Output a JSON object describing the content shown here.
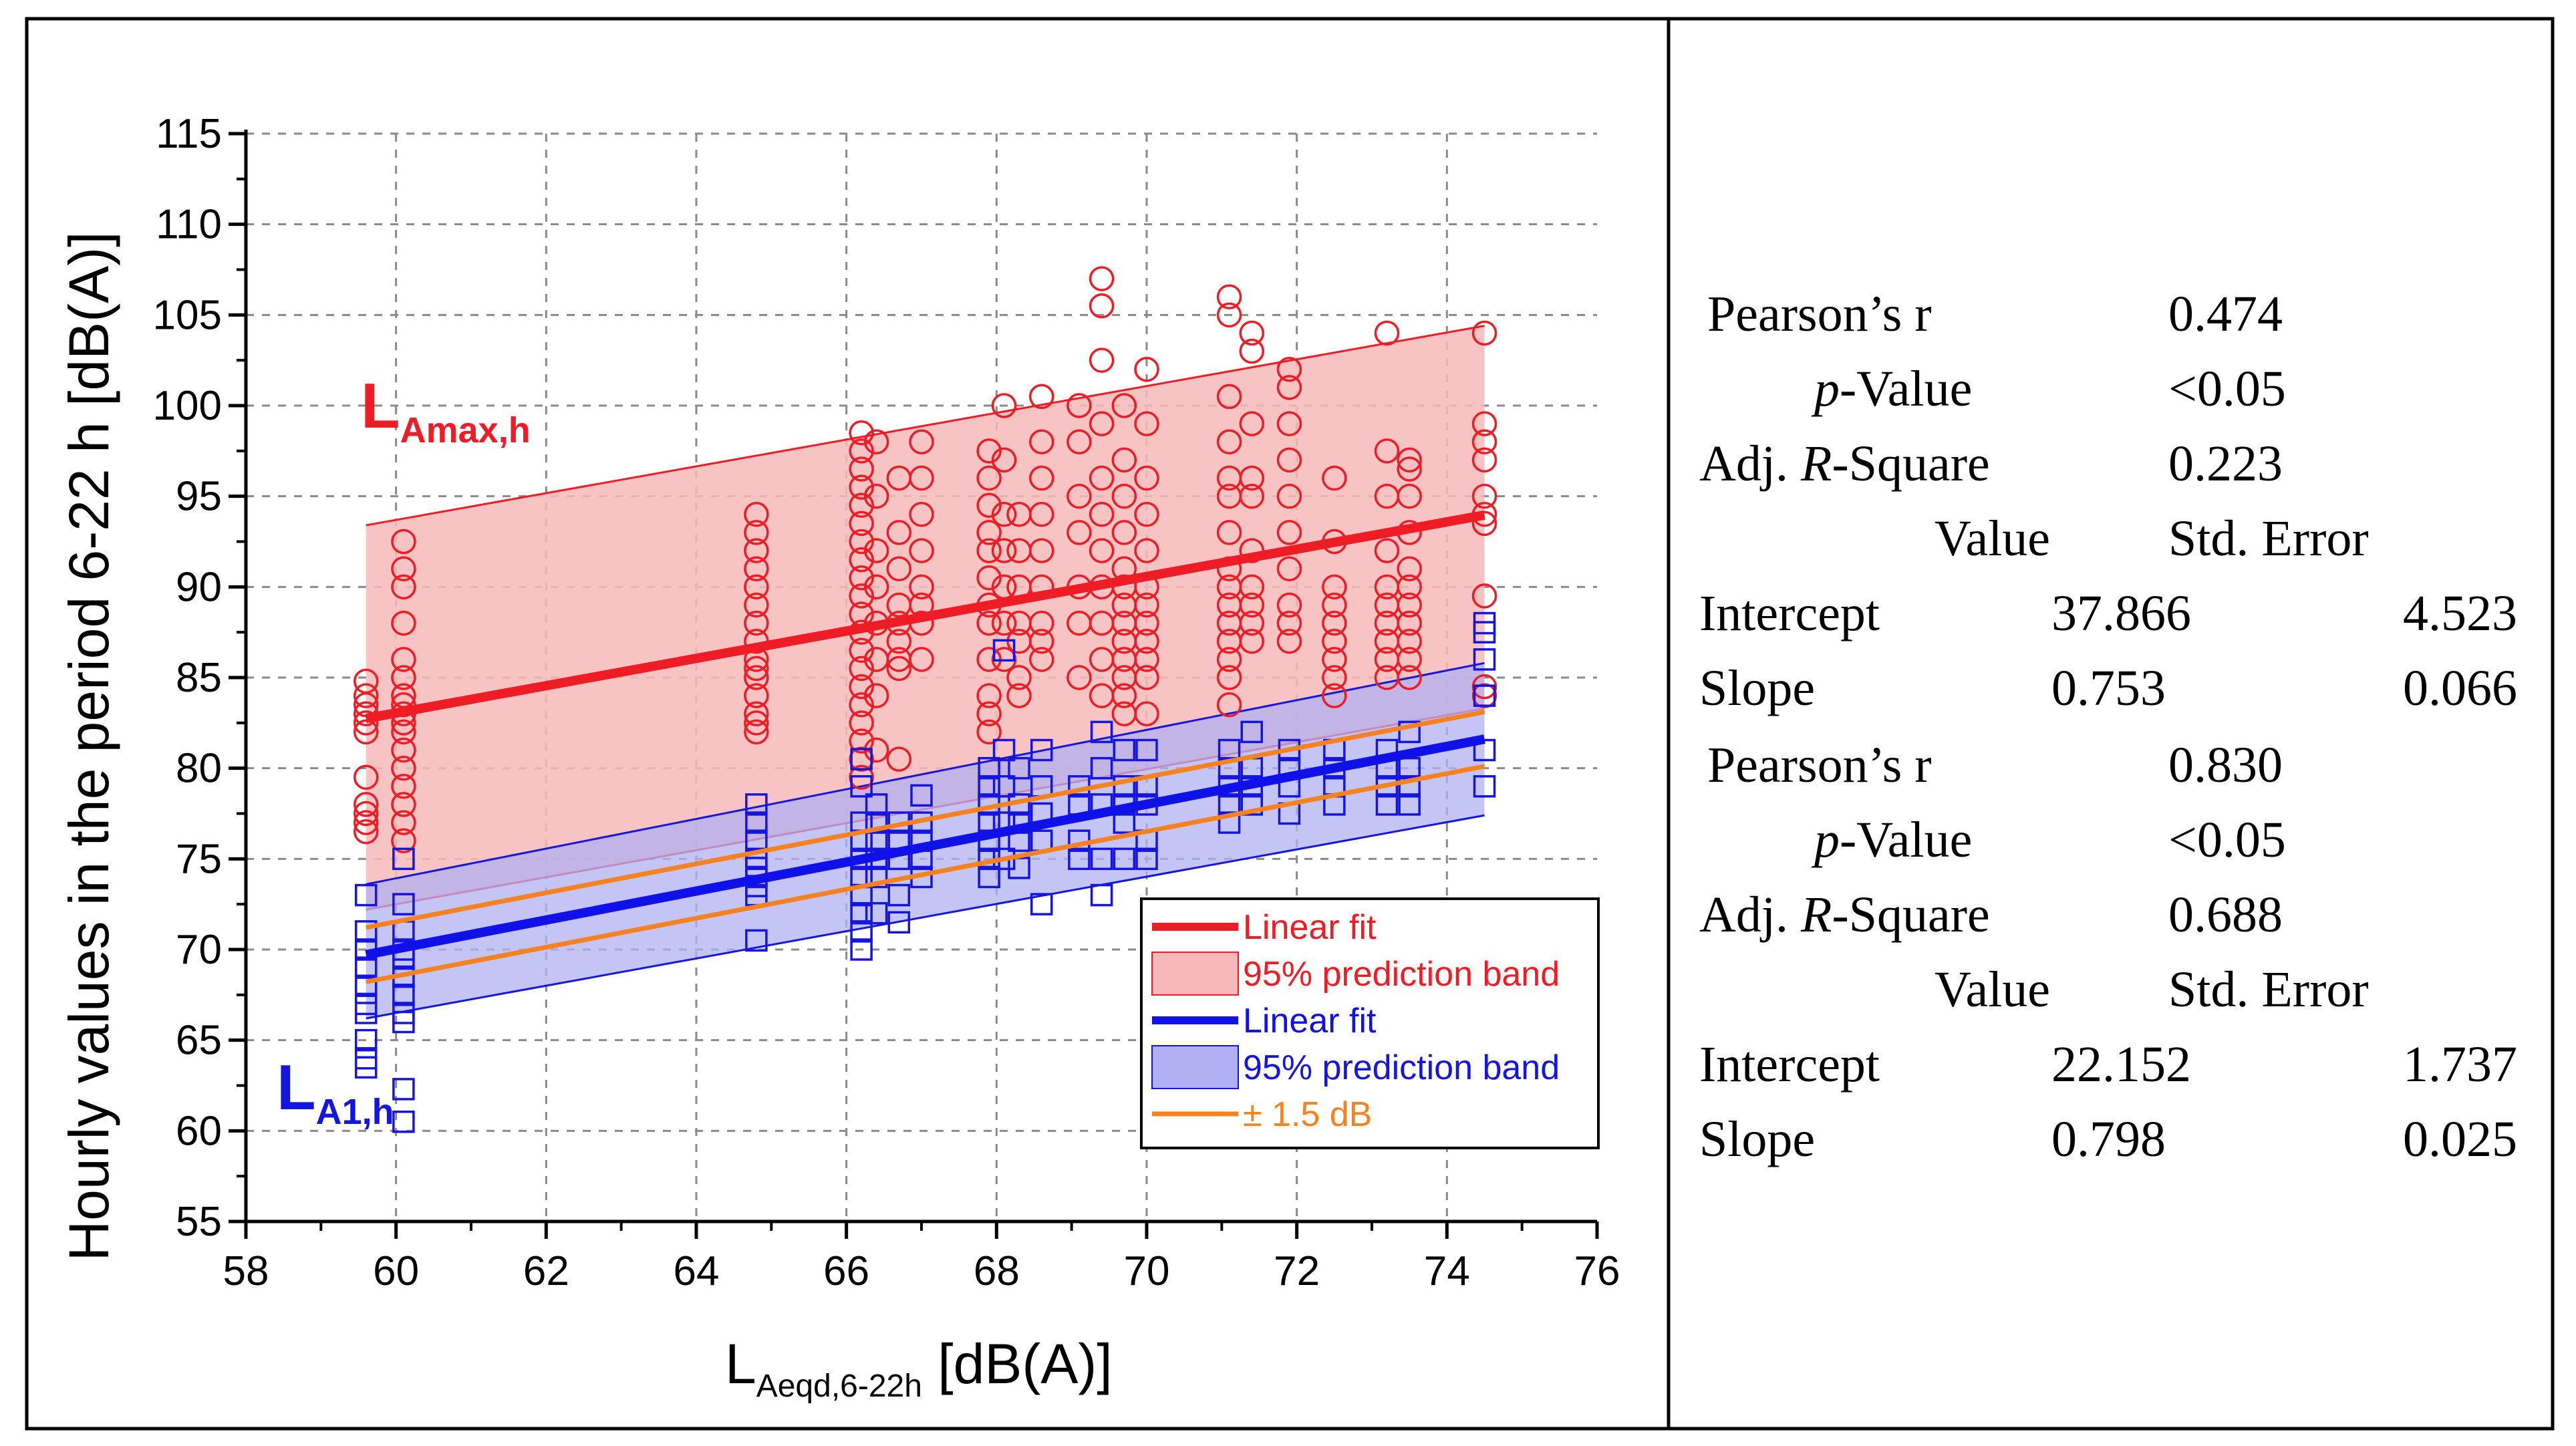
{
  "chart_data": {
    "type": "scatter",
    "xlabel_main": "L",
    "xlabel_sub": "Aeqd,6-22h",
    "xlabel_unit": " [dB(A)]",
    "ylabel": "Hourly values in the period 6-22 h [dB(A)]",
    "xlim": [
      58,
      76
    ],
    "ylim": [
      55,
      115
    ],
    "xticks": [
      58,
      60,
      62,
      64,
      66,
      68,
      70,
      72,
      74,
      76
    ],
    "yticks": [
      55,
      60,
      65,
      70,
      75,
      80,
      85,
      90,
      95,
      100,
      105,
      110,
      115
    ],
    "grid": true,
    "series_labels": [
      {
        "main": "L",
        "sub": "Amax,h",
        "color": "#ee1c25"
      },
      {
        "main": "L",
        "sub": "A1,h",
        "color": "#1515e0"
      }
    ],
    "fits": [
      {
        "name": "Linear fit (LAmax,h)",
        "intercept": 37.866,
        "slope": 0.753,
        "color": "#ee1c25",
        "x_range": [
          59.6,
          74.5
        ]
      },
      {
        "name": "Linear fit (LA1,h)",
        "intercept": 22.152,
        "slope": 0.798,
        "color": "#1010e8",
        "x_range": [
          59.6,
          74.5
        ]
      }
    ],
    "prediction_bands": [
      {
        "name": "95% prediction band (LAmax,h)",
        "lower_start": 72.2,
        "lower_end": 83.3,
        "upper_start": 93.4,
        "upper_end": 104.4,
        "fill": "#f6b8b8",
        "line": "#ee1c25"
      },
      {
        "name": "95% prediction band (LA1,h)",
        "lower_start": 66.2,
        "lower_end": 77.4,
        "upper_start": 73.6,
        "upper_end": 85.8,
        "fill": "#b0b0f2",
        "line": "#1515e0"
      }
    ],
    "offset_lines": {
      "name": "± 1.5 dB",
      "offset": 1.5,
      "color": "#f5821f"
    },
    "lamax_points": {
      "x": [
        59.6,
        59.6,
        59.6,
        59.6,
        59.6,
        59.6,
        59.6,
        59.6,
        59.6,
        59.6,
        59.6,
        60.1,
        60.1,
        60.1,
        60.1,
        60.1,
        60.1,
        60.1,
        60.1,
        60.1,
        60.1,
        60.1,
        60.1,
        60.1,
        60.1,
        60.1,
        60.1,
        60.1,
        64.8,
        64.8,
        64.8,
        64.8,
        64.8,
        64.8,
        64.8,
        64.8,
        64.8,
        64.8,
        64.8,
        64.8,
        64.8,
        64.8,
        64.8,
        66.2,
        66.2,
        66.2,
        66.2,
        66.2,
        66.2,
        66.2,
        66.2,
        66.2,
        66.2,
        66.2,
        66.2,
        66.2,
        66.2,
        66.2,
        66.2,
        66.2,
        66.2,
        66.2,
        66.2,
        66.4,
        66.4,
        66.4,
        66.4,
        66.4,
        66.4,
        66.4,
        66.4,
        66.7,
        66.7,
        66.7,
        66.7,
        66.7,
        66.7,
        66.7,
        66.7,
        66.7,
        67.0,
        67.0,
        67.0,
        67.0,
        67.0,
        67.0,
        67.0,
        67.0,
        67.9,
        67.9,
        67.9,
        67.9,
        67.9,
        67.9,
        67.9,
        67.9,
        67.9,
        67.9,
        67.9,
        67.9,
        68.1,
        68.1,
        68.1,
        68.1,
        68.1,
        68.1,
        68.1,
        68.3,
        68.3,
        68.3,
        68.3,
        68.3,
        68.3,
        68.3,
        68.6,
        68.6,
        68.6,
        68.6,
        68.6,
        68.6,
        68.6,
        68.6,
        68.6,
        69.1,
        69.1,
        69.1,
        69.1,
        69.1,
        69.1,
        69.1,
        69.4,
        69.4,
        69.4,
        69.4,
        69.4,
        69.4,
        69.4,
        69.4,
        69.4,
        69.4,
        69.4,
        69.7,
        69.7,
        69.7,
        69.7,
        69.7,
        69.7,
        69.7,
        69.7,
        69.7,
        69.7,
        69.7,
        69.7,
        69.7,
        70.0,
        70.0,
        70.0,
        70.0,
        70.0,
        70.0,
        70.0,
        70.0,
        70.0,
        70.0,
        70.0,
        70.0,
        71.1,
        71.1,
        71.1,
        71.1,
        71.1,
        71.1,
        71.1,
        71.1,
        71.1,
        71.1,
        71.1,
        71.1,
        71.1,
        71.1,
        71.1,
        71.4,
        71.4,
        71.4,
        71.4,
        71.4,
        71.4,
        71.4,
        71.4,
        71.4,
        71.4,
        71.9,
        71.9,
        71.9,
        71.9,
        71.9,
        71.9,
        71.9,
        71.9,
        71.9,
        71.9,
        72.5,
        72.5,
        72.5,
        72.5,
        72.5,
        72.5,
        72.5,
        72.5,
        72.5,
        73.2,
        73.2,
        73.2,
        73.2,
        73.2,
        73.2,
        73.2,
        73.2,
        73.2,
        73.2,
        73.5,
        73.5,
        73.5,
        73.5,
        73.5,
        73.5,
        73.5,
        73.5,
        73.5,
        73.5,
        73.5,
        74.5,
        74.5,
        74.5,
        74.5,
        74.5,
        74.5,
        74.5,
        74.5,
        74.5,
        74.5
      ],
      "y": [
        84.8,
        84.0,
        83.5,
        83.0,
        82.5,
        82.0,
        78.0,
        77.5,
        77.0,
        76.5,
        79.5,
        92.5,
        91.0,
        90.0,
        88.0,
        86.0,
        85.0,
        84.0,
        83.5,
        83.0,
        82.5,
        82.0,
        81.0,
        80.0,
        79.0,
        78.0,
        77.0,
        76.0,
        94.0,
        93.0,
        92.0,
        91.0,
        90.0,
        89.0,
        88.0,
        87.0,
        86.0,
        85.5,
        85.0,
        84.0,
        83.0,
        82.5,
        82.0,
        98.5,
        97.5,
        96.5,
        95.5,
        94.5,
        93.5,
        92.5,
        91.5,
        90.5,
        89.5,
        88.5,
        87.5,
        86.5,
        85.5,
        84.5,
        83.5,
        82.5,
        81.5,
        80.5,
        79.5,
        98.0,
        95.0,
        92.0,
        90.0,
        88.0,
        86.0,
        84.0,
        81.0,
        96.0,
        93.0,
        91.0,
        89.0,
        88.0,
        87.0,
        86.0,
        85.5,
        80.5,
        98.0,
        96.0,
        94.0,
        92.0,
        90.0,
        89.0,
        88.0,
        86.0,
        97.5,
        96.0,
        94.5,
        93.0,
        92.0,
        90.5,
        89.0,
        88.0,
        86.0,
        84.0,
        83.0,
        82.0,
        100.0,
        97.0,
        94.0,
        92.0,
        90.0,
        88.0,
        86.0,
        94.0,
        92.0,
        90.0,
        88.0,
        87.0,
        85.0,
        84.0,
        100.5,
        98.0,
        96.0,
        94.0,
        92.0,
        90.0,
        88.0,
        87.0,
        86.0,
        100.0,
        98.0,
        95.0,
        93.0,
        90.0,
        88.0,
        85.0,
        107.0,
        105.5,
        102.5,
        99.0,
        96.0,
        94.0,
        92.0,
        90.0,
        88.0,
        86.0,
        84.0,
        100.0,
        97.0,
        95.0,
        93.0,
        91.0,
        90.0,
        89.0,
        88.0,
        87.0,
        86.0,
        85.0,
        84.0,
        83.0,
        102.0,
        99.0,
        96.0,
        94.0,
        92.0,
        90.0,
        89.0,
        88.0,
        87.0,
        86.0,
        85.0,
        83.0,
        106.0,
        105.0,
        100.5,
        98.0,
        96.0,
        95.0,
        93.0,
        91.0,
        90.0,
        89.0,
        88.0,
        87.0,
        86.0,
        85.0,
        83.5,
        104.0,
        103.0,
        99.0,
        96.0,
        95.0,
        92.0,
        90.0,
        89.0,
        88.0,
        87.0,
        102.0,
        101.0,
        99.0,
        97.0,
        95.0,
        93.0,
        91.0,
        89.0,
        88.0,
        87.0,
        96.0,
        92.5,
        90.0,
        89.0,
        88.0,
        87.0,
        86.0,
        85.0,
        84.0,
        104.0,
        97.5,
        95.0,
        92.0,
        90.0,
        89.0,
        88.0,
        87.0,
        86.0,
        85.0,
        97.0,
        96.5,
        95.0,
        93.0,
        91.0,
        90.0,
        89.0,
        88.0,
        87.0,
        86.0,
        85.0,
        104.0,
        99.0,
        98.0,
        97.0,
        95.0,
        94.0,
        93.5,
        89.5,
        84.5,
        84.0
      ]
    },
    "la1_points": {
      "x": [
        59.6,
        59.6,
        59.6,
        59.6,
        59.6,
        59.6,
        59.6,
        59.6,
        59.6,
        59.6,
        60.1,
        60.1,
        60.1,
        60.1,
        60.1,
        60.1,
        60.1,
        60.1,
        60.1,
        60.1,
        60.1,
        64.8,
        64.8,
        64.8,
        64.8,
        64.8,
        64.8,
        64.8,
        64.8,
        64.8,
        66.2,
        66.2,
        66.2,
        66.2,
        66.2,
        66.2,
        66.2,
        66.2,
        66.2,
        66.2,
        66.4,
        66.4,
        66.4,
        66.4,
        66.4,
        66.4,
        66.7,
        66.7,
        66.7,
        66.7,
        66.7,
        67.0,
        67.0,
        67.0,
        67.0,
        67.0,
        67.9,
        67.9,
        67.9,
        67.9,
        67.9,
        67.9,
        67.9,
        68.1,
        68.1,
        68.1,
        68.1,
        68.1,
        68.3,
        68.3,
        68.3,
        68.3,
        68.3,
        68.6,
        68.6,
        68.6,
        68.6,
        68.6,
        69.1,
        69.1,
        69.1,
        69.1,
        69.4,
        69.4,
        69.4,
        69.4,
        69.4,
        69.7,
        69.7,
        69.7,
        69.7,
        69.7,
        70.0,
        70.0,
        70.0,
        70.0,
        70.0,
        71.1,
        71.1,
        71.1,
        71.1,
        71.1,
        71.4,
        71.4,
        71.4,
        71.4,
        71.9,
        71.9,
        71.9,
        71.9,
        72.5,
        72.5,
        72.5,
        72.5,
        73.2,
        73.2,
        73.2,
        73.2,
        73.5,
        73.5,
        73.5,
        73.5,
        74.5,
        74.5,
        74.5,
        74.5,
        74.5,
        74.5
      ],
      "y": [
        73.0,
        71.0,
        70.0,
        69.0,
        68.0,
        67.0,
        66.5,
        65.0,
        64.0,
        63.5,
        75.0,
        72.5,
        71.0,
        70.0,
        69.5,
        68.5,
        67.5,
        66.5,
        66.0,
        62.3,
        60.5,
        78.0,
        77.0,
        76.0,
        75.0,
        74.5,
        74.0,
        73.5,
        73.0,
        70.5,
        80.5,
        79.0,
        77.0,
        76.0,
        75.0,
        74.0,
        73.0,
        72.0,
        71.0,
        70.0,
        78.0,
        77.0,
        76.0,
        75.0,
        74.0,
        72.0,
        77.0,
        76.0,
        75.0,
        73.0,
        71.5,
        78.5,
        77.0,
        76.0,
        75.0,
        74.0,
        80.0,
        79.0,
        78.0,
        77.0,
        76.0,
        75.0,
        74.0,
        86.5,
        81.0,
        79.0,
        77.0,
        75.0,
        80.0,
        78.0,
        77.0,
        76.0,
        74.5,
        81.0,
        79.0,
        77.5,
        76.0,
        72.5,
        79.0,
        78.0,
        76.0,
        75.0,
        82.0,
        80.0,
        78.0,
        75.0,
        73.0,
        81.0,
        79.0,
        78.0,
        77.0,
        75.0,
        81.0,
        79.0,
        78.0,
        76.0,
        75.0,
        81.0,
        80.0,
        79.0,
        78.0,
        77.0,
        82.0,
        80.0,
        79.0,
        78.0,
        81.0,
        80.0,
        79.0,
        77.5,
        81.0,
        80.0,
        79.0,
        78.0,
        81.0,
        80.0,
        79.0,
        78.0,
        82.0,
        80.0,
        79.0,
        78.0,
        88.0,
        87.5,
        86.0,
        84.0,
        81.0,
        79.0
      ]
    }
  },
  "legend": {
    "items": [
      {
        "label": "Linear fit",
        "color": "#ee1c25",
        "kind": "line"
      },
      {
        "label": "95% prediction band",
        "color": "#ee1c25",
        "kind": "box",
        "fill": "#f6b8b8"
      },
      {
        "label": "Linear fit",
        "color": "#1010e8",
        "kind": "line"
      },
      {
        "label": "95% prediction band",
        "color": "#1515e0",
        "kind": "box",
        "fill": "#b0b0f2"
      },
      {
        "label": "± 1.5 dB",
        "color": "#f5821f",
        "kind": "line"
      }
    ]
  },
  "stats": {
    "red": {
      "pearson_label": "Pearson’s r",
      "pearson_value": "0.474",
      "p_label_italic": "p",
      "p_label_rest": "-Value",
      "p_value": "<0.05",
      "adj_label_a": "Adj. ",
      "adj_label_italic": "R",
      "adj_label_b": "-Square",
      "adj_value": "0.223",
      "col_value": "Value",
      "col_stderr": "Std. Error",
      "intercept_label": "Intercept",
      "intercept_value": "37.866",
      "intercept_stderr": "4.523",
      "slope_label": "Slope",
      "slope_value": "0.753",
      "slope_stderr": "0.066"
    },
    "blue": {
      "pearson_label": "Pearson’s r",
      "pearson_value": "0.830",
      "p_label_italic": "p",
      "p_label_rest": "-Value",
      "p_value": "<0.05",
      "adj_label_a": "Adj. ",
      "adj_label_italic": "R",
      "adj_label_b": "-Square",
      "adj_value": "0.688",
      "col_value": "Value",
      "col_stderr": "Std. Error",
      "intercept_label": "Intercept",
      "intercept_value": "22.152",
      "intercept_stderr": "1.737",
      "slope_label": "Slope",
      "slope_value": "0.798",
      "slope_stderr": "0.025"
    }
  }
}
